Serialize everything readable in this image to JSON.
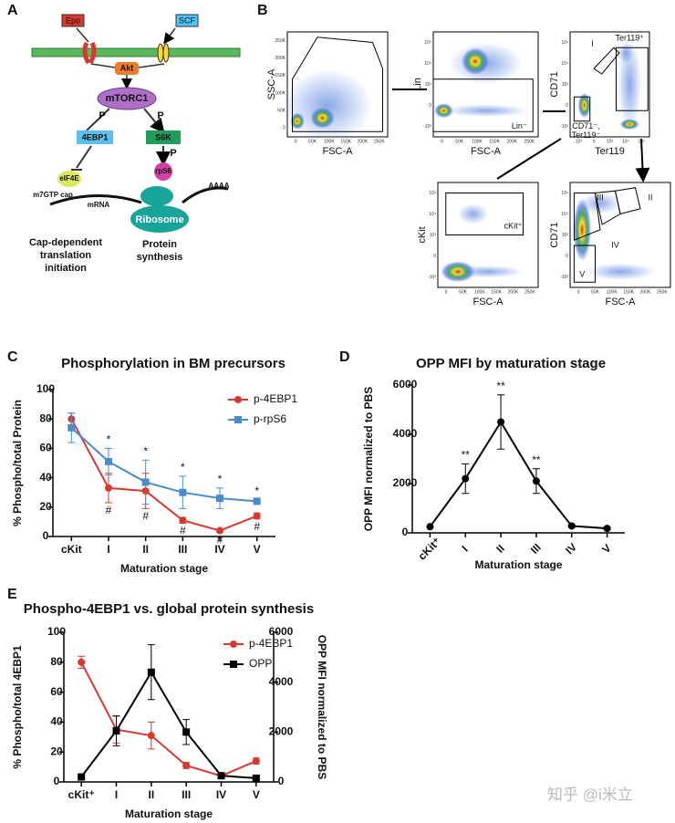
{
  "panel_labels": [
    "A",
    "B",
    "C",
    "D",
    "E"
  ],
  "panel_a": {
    "ligands": [
      "Epo",
      "SCF"
    ],
    "akt": "Akt",
    "mtorc1": "mTORC1",
    "p_labels": [
      "P",
      "P",
      "P"
    ],
    "eif_4ebp1": "4EBP1",
    "s6k": "S6K",
    "eif4e": "eIF4E",
    "rps6": "rpS6",
    "cap": "m7GTP cap",
    "mrna": "mRNA",
    "polya": "AAAA",
    "ribosome": "Ribosome",
    "left_caption": [
      "Cap-dependent",
      "translation",
      "initiation"
    ],
    "right_caption": [
      "Protein",
      "synthesis"
    ]
  },
  "panel_b": {
    "lin_ticks": [
      "0",
      "50K",
      "100K",
      "150K",
      "200K",
      "250K"
    ],
    "log_ticks": [
      "-10³",
      "0",
      "10³",
      "10⁴",
      "10⁵"
    ],
    "plots": [
      {
        "xlabel": "FSC-A",
        "ylabel": "SSC-A",
        "x_scale": "linear",
        "y_scale": "linear"
      },
      {
        "xlabel": "FSC-A",
        "ylabel": "Lin",
        "x_scale": "linear",
        "y_scale": "log",
        "gates": [
          "Lin⁻"
        ]
      },
      {
        "xlabel": "Ter119",
        "ylabel": "CD71",
        "x_scale": "log",
        "y_scale": "log",
        "gates": [
          "I",
          "Ter119⁺",
          "CD71⁻,",
          "Ter119⁻"
        ]
      },
      {
        "xlabel": "FSC-A",
        "ylabel": "cKit",
        "x_scale": "linear",
        "y_scale": "log",
        "gates": [
          "cKit⁺"
        ]
      },
      {
        "xlabel": "FSC-A",
        "ylabel": "CD71",
        "x_scale": "linear",
        "y_scale": "log",
        "gates": [
          "III",
          "II",
          "IV",
          "V"
        ]
      }
    ]
  },
  "chart_data": [
    {
      "type": "line",
      "title": "Phosphorylation in BM precursors",
      "ylabel": "% Phospho/total Protein",
      "xlabel": "Maturation stage",
      "categories": [
        "cKit",
        "I",
        "II",
        "III",
        "IV",
        "V"
      ],
      "ylim": [
        0,
        100
      ],
      "yticks": [
        0,
        20,
        40,
        60,
        80,
        100
      ],
      "legend": "upper right",
      "series": [
        {
          "name": "p-4EBP1",
          "color": "#d9382f",
          "marker": "circle",
          "values": [
            80,
            33,
            31,
            11,
            4,
            14
          ],
          "errors": [
            4,
            10,
            12,
            2,
            1,
            2
          ]
        },
        {
          "name": "p-rpS6",
          "color": "#4a8cc7",
          "marker": "square",
          "values": [
            74,
            51,
            37,
            30,
            26,
            24
          ],
          "errors": [
            10,
            9,
            15,
            11,
            7,
            1
          ]
        }
      ],
      "annotations_above": [
        null,
        "*",
        "*",
        "*",
        "*",
        "*"
      ],
      "annotations_below": [
        null,
        "#",
        "#",
        "#",
        "#",
        "#"
      ]
    },
    {
      "type": "line",
      "title": "OPP MFI by maturation stage",
      "ylabel": "OPP MFI normalized to PBS",
      "xlabel": "Maturation stage",
      "categories": [
        "cKit⁺",
        "I",
        "II",
        "III",
        "IV",
        "V"
      ],
      "xtick_rotation": -45,
      "ylim": [
        0,
        6000
      ],
      "yticks": [
        0,
        2000,
        4000,
        6000
      ],
      "series": [
        {
          "name": "OPP",
          "color": "#000000",
          "marker": "circle",
          "values": [
            250,
            2200,
            4500,
            2100,
            280,
            180
          ],
          "errors": [
            0,
            600,
            1100,
            500,
            50,
            50
          ]
        }
      ],
      "annotations_above": [
        null,
        "**",
        "**",
        "**",
        null,
        null
      ]
    },
    {
      "type": "line",
      "title": "Phospho-4EBP1 vs. global protein synthesis",
      "ylabel": "% Phospho/total 4EBP1",
      "y2label": "OPP MFI normalized to PBS",
      "xlabel": "Maturation stage",
      "categories": [
        "cKit⁺",
        "I",
        "II",
        "III",
        "IV",
        "V"
      ],
      "ylim": [
        0,
        100
      ],
      "yticks": [
        0,
        20,
        40,
        60,
        80,
        100
      ],
      "y2lim": [
        0,
        6000
      ],
      "y2ticks": [
        0,
        2000,
        4000,
        6000
      ],
      "legend": "upper right",
      "series": [
        {
          "name": "p-4EBP1",
          "color": "#d9382f",
          "marker": "circle",
          "values": [
            80,
            35,
            31,
            11,
            4,
            14
          ],
          "errors": [
            4,
            9,
            9,
            2,
            1,
            2
          ]
        },
        {
          "name": "OPP",
          "color": "#000000",
          "marker": "square",
          "axis": "y2",
          "values": [
            200,
            2050,
            4400,
            2000,
            250,
            150
          ],
          "errors": [
            0,
            600,
            1100,
            500,
            50,
            50
          ]
        }
      ]
    }
  ],
  "watermark": "知乎 @i米立"
}
